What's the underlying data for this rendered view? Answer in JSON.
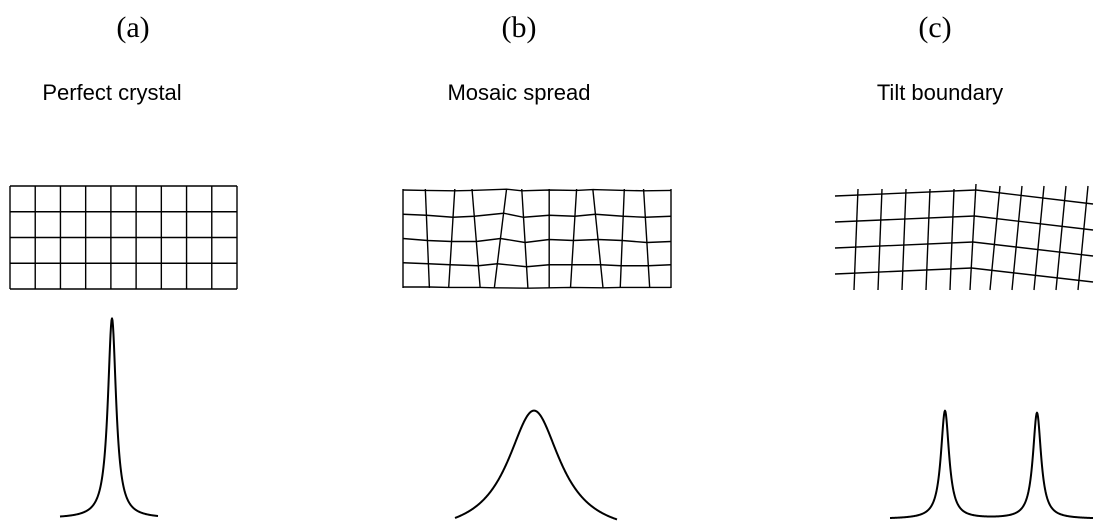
{
  "panels": [
    {
      "label": "(a)",
      "title": "Perfect crystal"
    },
    {
      "label": "(b)",
      "title": "Mosaic spread"
    },
    {
      "label": "(c)",
      "title": "Tilt boundary"
    }
  ]
}
